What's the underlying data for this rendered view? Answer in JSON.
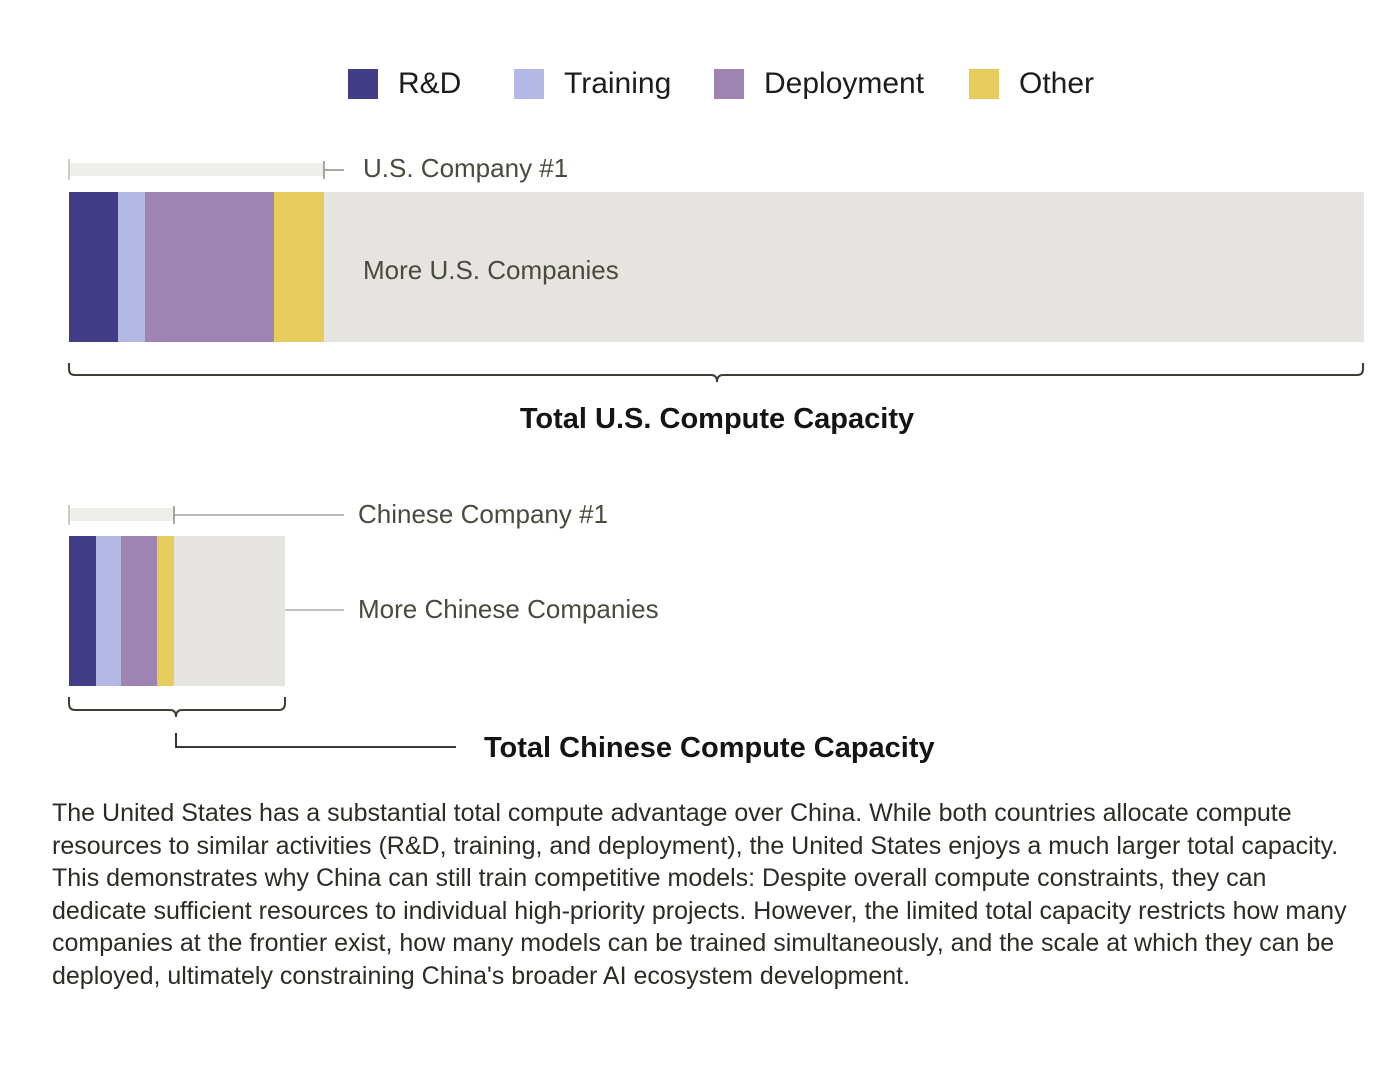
{
  "colors": {
    "rd": "#433d88",
    "training": "#b3b9e4",
    "deployment": "#9d84b2",
    "other": "#e6cc5c",
    "remainder": "#e5e4e0",
    "bracket": "#3d3d35"
  },
  "legend": [
    {
      "label": "R&D",
      "color": "#433d88"
    },
    {
      "label": "Training",
      "color": "#b3b9e4"
    },
    {
      "label": "Deployment",
      "color": "#9d84b2"
    },
    {
      "label": "Other",
      "color": "#e6cc5c"
    }
  ],
  "us": {
    "company_label": "U.S. Company #1",
    "remainder_label": "More U.S. Companies",
    "total_label": "Total U.S. Compute Capacity"
  },
  "china": {
    "company_label": "Chinese Company #1",
    "remainder_label": "More Chinese Companies",
    "total_label": "Total Chinese Compute Capacity"
  },
  "caption": "The United States has a substantial total compute advantage over China. While both countries allocate compute resources to similar activities (R&D, training, and deployment), the United States enjoys a much larger total capacity. This demonstrates why China can still train competitive models: Despite overall compute constraints, they can dedicate sufficient resources to individual high-priority projects. However, the limited total capacity restricts how many companies at the frontier exist, how many models can be trained simultaneously, and the scale at which they can be deployed, ultimately constraining China's broader AI ecosystem development."
}
